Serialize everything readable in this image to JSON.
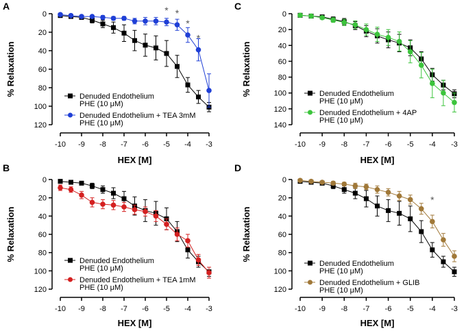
{
  "figure": {
    "x_values": [
      -10,
      -9.5,
      -9,
      -8.5,
      -8,
      -7.5,
      -7,
      -6.5,
      -6,
      -5.5,
      -5,
      -4.5,
      -4,
      -3.5,
      -3
    ],
    "colors": {
      "control": "#000000",
      "tea3": "#1f3fd6",
      "ap4": "#3cc43c",
      "tea1": "#d42020",
      "glib": "#a07838"
    }
  },
  "chart_data": [
    {
      "type": "scatter",
      "panel": "A",
      "xlabel": "HEX [M]",
      "ylabel": "% Relaxation",
      "xlim": [
        -10,
        -3
      ],
      "ylim": [
        0,
        120
      ],
      "y_inverted": true,
      "xticks": [
        -10,
        -9,
        -8,
        -7,
        -6,
        -5,
        -4,
        -3
      ],
      "yticks": [
        0,
        20,
        40,
        60,
        80,
        100,
        120
      ],
      "series": [
        {
          "name": "Denuded Endothelium",
          "line2": "PHE (10 μM)",
          "color": "#000000",
          "marker": "square",
          "values": [
            2,
            3,
            4,
            7,
            11,
            15,
            21,
            29,
            34,
            37,
            43,
            57,
            77,
            90,
            101
          ],
          "errors": [
            2,
            2,
            2,
            3,
            4,
            6,
            9,
            11,
            12,
            13,
            14,
            12,
            8,
            7,
            5
          ]
        },
        {
          "name": "Denuded Endothelium + TEA 3mM",
          "line2": "PHE (10 μM)",
          "color": "#1f3fd6",
          "marker": "circle",
          "values": [
            1,
            2,
            3,
            3,
            4,
            5,
            5,
            8,
            8,
            8,
            9,
            12,
            23,
            39,
            83
          ],
          "errors": [
            1,
            1,
            1,
            1,
            2,
            2,
            2,
            3,
            4,
            4,
            4,
            6,
            8,
            12,
            18
          ]
        }
      ],
      "annotations": [
        {
          "text": "*",
          "x": -5,
          "y": 9
        },
        {
          "text": "*",
          "x": -4.5,
          "y": 12
        },
        {
          "text": "*",
          "x": -4,
          "y": 23
        },
        {
          "text": "*",
          "x": -3.5,
          "y": 39
        }
      ],
      "legend": "bottom-left"
    },
    {
      "type": "scatter",
      "panel": "C",
      "xlabel": "HEX [M]",
      "ylabel": "% Relaxation",
      "xlim": [
        -10,
        -3
      ],
      "ylim": [
        0,
        140
      ],
      "y_inverted": true,
      "xticks": [
        -10,
        -9,
        -8,
        -7,
        -6,
        -5,
        -4,
        -3
      ],
      "yticks": [
        0,
        20,
        40,
        60,
        80,
        100,
        120,
        140
      ],
      "series": [
        {
          "name": "Denuded Endothelium",
          "line2": "PHE (10 μM)",
          "color": "#000000",
          "marker": "square",
          "values": [
            2,
            3,
            4,
            7,
            10,
            15,
            22,
            28,
            33,
            37,
            43,
            57,
            77,
            90,
            101
          ],
          "errors": [
            2,
            2,
            2,
            3,
            4,
            5,
            7,
            9,
            10,
            11,
            10,
            9,
            8,
            6,
            5
          ]
        },
        {
          "name": "Denuded Endothelium + 4AP",
          "line2": "PHE (10 μM)",
          "color": "#3cc43c",
          "marker": "circle",
          "values": [
            2,
            3,
            5,
            8,
            11,
            14,
            20,
            26,
            30,
            35,
            48,
            65,
            88,
            100,
            112
          ],
          "errors": [
            2,
            2,
            2,
            3,
            4,
            5,
            7,
            9,
            10,
            12,
            14,
            16,
            18,
            16,
            12
          ]
        }
      ],
      "legend": "bottom-left"
    },
    {
      "type": "scatter",
      "panel": "B",
      "xlabel": "HEX [M]",
      "ylabel": "% Relaxation",
      "xlim": [
        -10,
        -3
      ],
      "ylim": [
        0,
        120
      ],
      "y_inverted": true,
      "xticks": [
        -10,
        -9,
        -8,
        -7,
        -6,
        -5,
        -4,
        -3
      ],
      "yticks": [
        0,
        20,
        40,
        60,
        80,
        100,
        120
      ],
      "series": [
        {
          "name": "Denuded Endothelium",
          "line2": "PHE (10 μM)",
          "color": "#000000",
          "marker": "square",
          "values": [
            2,
            3,
            4,
            7,
            11,
            15,
            21,
            29,
            34,
            37,
            43,
            57,
            77,
            90,
            101
          ],
          "errors": [
            2,
            2,
            2,
            3,
            4,
            6,
            8,
            10,
            12,
            13,
            12,
            11,
            9,
            6,
            5
          ]
        },
        {
          "name": "Denuded Endothelium + TEA 1mM",
          "line2": "PHE (10 μM)",
          "color": "#d42020",
          "marker": "circle",
          "values": [
            9,
            11,
            17,
            25,
            27,
            28,
            30,
            33,
            35,
            40,
            49,
            60,
            67,
            88,
            102
          ],
          "errors": [
            3,
            3,
            4,
            5,
            5,
            5,
            5,
            5,
            5,
            6,
            6,
            7,
            7,
            6,
            6
          ]
        }
      ],
      "legend": "bottom-left"
    },
    {
      "type": "scatter",
      "panel": "D",
      "xlabel": "HEX [M]",
      "ylabel": "% Relaxation",
      "xlim": [
        -10,
        -3
      ],
      "ylim": [
        0,
        120
      ],
      "y_inverted": true,
      "xticks": [
        -10,
        -9,
        -8,
        -7,
        -6,
        -5,
        -4,
        -3
      ],
      "yticks": [
        0,
        20,
        40,
        60,
        80,
        100,
        120
      ],
      "series": [
        {
          "name": "Denuded Endothelium",
          "line2": "PHE (10 μM)",
          "color": "#000000",
          "marker": "square",
          "values": [
            2,
            3,
            4,
            7,
            11,
            15,
            21,
            29,
            34,
            37,
            43,
            57,
            77,
            90,
            101
          ],
          "errors": [
            2,
            2,
            2,
            3,
            4,
            6,
            9,
            11,
            12,
            13,
            14,
            12,
            8,
            6,
            5
          ]
        },
        {
          "name": "Denuded Endothelium + GLIB",
          "line2": "PHE (10 μM)",
          "color": "#a07838",
          "marker": "circle",
          "values": [
            1,
            2,
            3,
            4,
            5,
            7,
            8,
            11,
            14,
            18,
            22,
            32,
            46,
            66,
            84
          ],
          "errors": [
            1,
            1,
            1,
            2,
            2,
            3,
            3,
            4,
            4,
            5,
            5,
            6,
            7,
            7,
            6
          ]
        }
      ],
      "annotations": [
        {
          "text": "*",
          "x": -4,
          "y": 35
        }
      ],
      "legend": "bottom-left"
    }
  ]
}
